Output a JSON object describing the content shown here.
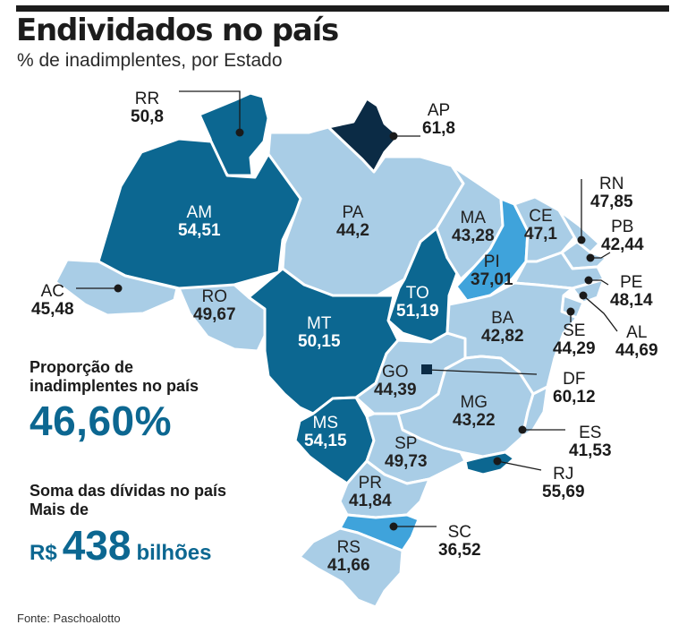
{
  "header": {
    "title": "Endividados no país",
    "subtitle": "% de inadimplentes, por Estado"
  },
  "states": {
    "RR": {
      "code": "RR",
      "value": "50,8"
    },
    "AP": {
      "code": "AP",
      "value": "61,8"
    },
    "AM": {
      "code": "AM",
      "value": "54,51"
    },
    "PA": {
      "code": "PA",
      "value": "44,2"
    },
    "MA": {
      "code": "MA",
      "value": "43,28"
    },
    "CE": {
      "code": "CE",
      "value": "47,1"
    },
    "RN": {
      "code": "RN",
      "value": "47,85"
    },
    "PB": {
      "code": "PB",
      "value": "42,44"
    },
    "PE": {
      "code": "PE",
      "value": "48,14"
    },
    "AL": {
      "code": "AL",
      "value": "44,69"
    },
    "SE": {
      "code": "SE",
      "value": "44,29"
    },
    "PI": {
      "code": "PI",
      "value": "37,01"
    },
    "AC": {
      "code": "AC",
      "value": "45,48"
    },
    "RO": {
      "code": "RO",
      "value": "49,67"
    },
    "TO": {
      "code": "TO",
      "value": "51,19"
    },
    "MT": {
      "code": "MT",
      "value": "50,15"
    },
    "BA": {
      "code": "BA",
      "value": "42,82"
    },
    "GO": {
      "code": "GO",
      "value": "44,39"
    },
    "DF": {
      "code": "DF",
      "value": "60,12"
    },
    "MG": {
      "code": "MG",
      "value": "43,22"
    },
    "MS": {
      "code": "MS",
      "value": "54,15"
    },
    "ES": {
      "code": "ES",
      "value": "41,53"
    },
    "SP": {
      "code": "SP",
      "value": "49,73"
    },
    "RJ": {
      "code": "RJ",
      "value": "55,69"
    },
    "PR": {
      "code": "PR",
      "value": "41,84"
    },
    "SC": {
      "code": "SC",
      "value": "36,52"
    },
    "RS": {
      "code": "RS",
      "value": "41,66"
    }
  },
  "stats": {
    "proportion_label_line1": "Proporção de",
    "proportion_label_line2": "inadimplentes no país",
    "proportion_value": "46,60%",
    "debt_label_line1": "Soma das dívidas no país",
    "debt_label_line2": "Mais de",
    "debt_currency": "R$",
    "debt_value": "438",
    "debt_unit": "bilhões"
  },
  "source": "Fonte: Paschoalotto",
  "colors": {
    "light": "#a9cde6",
    "mid": "#3fa3db",
    "dark": "#0c6791",
    "darkest": "#0b2b45"
  }
}
